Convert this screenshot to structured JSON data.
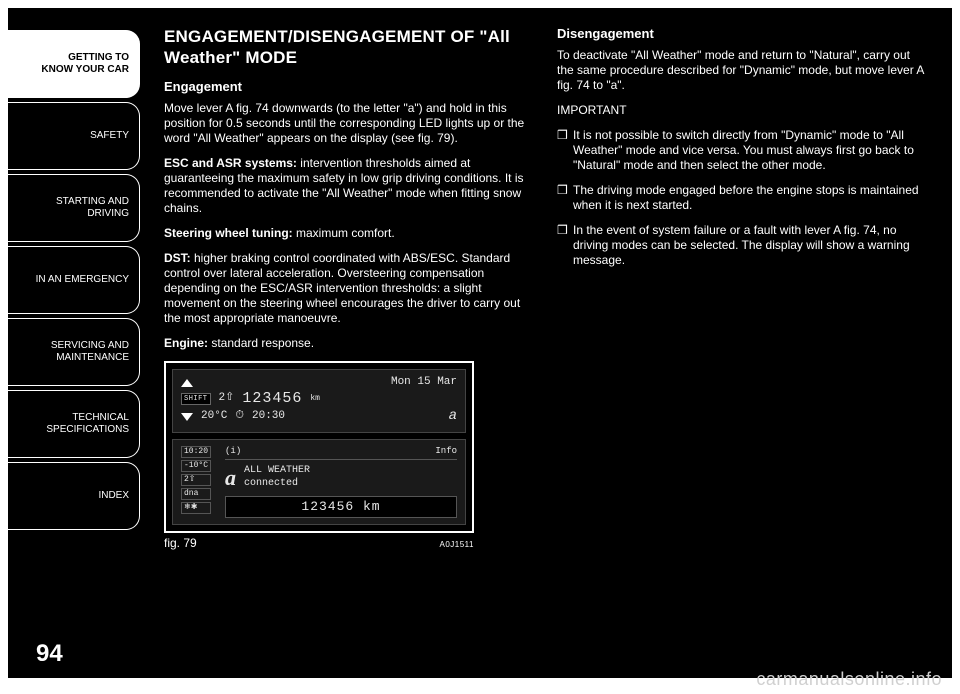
{
  "sidebar": {
    "tabs": [
      {
        "label": "GETTING TO\nKNOW YOUR CAR",
        "active": true
      },
      {
        "label": "SAFETY",
        "active": false
      },
      {
        "label": "STARTING AND\nDRIVING",
        "active": false
      },
      {
        "label": "IN AN EMERGENCY",
        "active": false
      },
      {
        "label": "SERVICING AND\nMAINTENANCE",
        "active": false
      },
      {
        "label": "TECHNICAL\nSPECIFICATIONS",
        "active": false
      },
      {
        "label": "INDEX",
        "active": false
      }
    ]
  },
  "left": {
    "heading": "ENGAGEMENT/DISENGAGEMENT OF \"All Weather\" MODE",
    "h_engagement": "Engagement",
    "p_move": "Move lever A fig. 74 downwards (to the letter \"a\") and hold in this position for 0.5 seconds until the corresponding LED lights up or the word \"All Weather\" appears on the display (see fig. 79).",
    "esc_label": "ESC and ASR systems:",
    "esc_text": " intervention thresholds aimed at guaranteeing the maximum safety in low grip driving conditions. It is recommended to activate the \"All Weather\" mode when fitting snow chains.",
    "steer_label": "Steering wheel tuning:",
    "steer_text": " maximum comfort.",
    "dst_label": "DST:",
    "dst_text": " higher braking control coordinated with ABS/ESC. Standard control over lateral acceleration. Oversteering compensation depending on the ESC/ASR intervention thresholds: a slight movement on the steering wheel encourages the driver to carry out the most appropriate manoeuvre.",
    "engine_label": "Engine:",
    "engine_text": " standard response."
  },
  "right": {
    "h_disengagement": "Disengagement",
    "p_deactivate": "To deactivate \"All Weather\" mode and return to \"Natural\", carry out the same procedure described for \"Dynamic\" mode, but move lever A fig. 74 to \"a\".",
    "important": "IMPORTANT",
    "bullets": [
      "It is not possible to switch directly from \"Dynamic\" mode to \"All Weather\" mode and vice versa. You must always first go back to \"Natural\" mode and then select the other mode.",
      "The driving mode engaged before the engine stops is maintained when it is next started.",
      "In the event of system failure or a fault with lever A fig. 74, no driving modes can be selected. The display will show a warning message."
    ]
  },
  "display1": {
    "date": "Mon 15 Mar",
    "shift_label": "SHIFT",
    "gear": "2⇧",
    "odo": "123456",
    "odo_unit": "km",
    "temp": "20°C",
    "clock_icon": "⏱",
    "time": "20:30",
    "mode": "a"
  },
  "display2": {
    "time": "10:20",
    "info_icon": "(i)",
    "info_label": "Info",
    "stats": [
      "-10°C",
      "2⇧",
      "dna",
      "❄✱"
    ],
    "a_icon": "a",
    "aw_line1": "ALL WEATHER",
    "aw_line2": "connected",
    "odo": "123456 km"
  },
  "fig": {
    "label": "fig. 79",
    "code": "A0J1511"
  },
  "page_number": "94",
  "watermark": "carmanualsonline.info"
}
